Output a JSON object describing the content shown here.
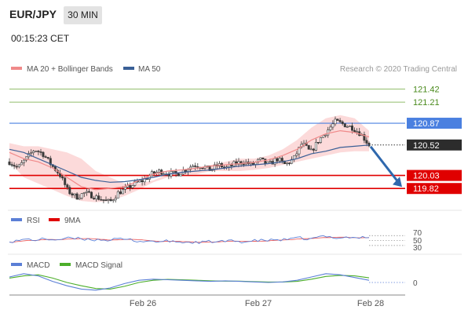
{
  "header": {
    "symbol": "EUR/JPY",
    "timeframe": "30 MIN",
    "time": "00:15:23 CET"
  },
  "legend": {
    "ma20_bb": "MA 20 + Bollinger Bands",
    "ma50": "MA 50",
    "credit": "Research © 2020 Trading Central",
    "rsi": "RSI",
    "rsi_ma": "9MA",
    "macd": "MACD",
    "macd_signal": "MACD Signal"
  },
  "colors": {
    "candle": "#3a3a3a",
    "ma20": "#f08a8a",
    "bands": "#fbd3d3",
    "ma50": "#3a5f96",
    "resistance": "#6fa83c",
    "pivot": "#4a80e0",
    "support": "#e00000",
    "arrow": "#2f68ad",
    "rsi": "#5b7fd6",
    "rsi_ma": "#e00000",
    "macd": "#5b7fd6",
    "macd_signal": "#4cae2a"
  },
  "chart_data": {
    "type": "candlestick",
    "symbol": "EUR/JPY",
    "timeframe": "30 MIN",
    "x_labels": [
      "Feb 26",
      "Feb 27",
      "Feb 28"
    ],
    "ylim": [
      119.52,
      121.59
    ],
    "levels": [
      {
        "label": "121.42",
        "value": 121.42,
        "kind": "resistance"
      },
      {
        "label": "121.21",
        "value": 121.21,
        "kind": "resistance"
      },
      {
        "label": "120.87",
        "value": 120.87,
        "kind": "pivot"
      },
      {
        "label": "120.52",
        "value": 120.52,
        "kind": "last"
      },
      {
        "label": "120.03",
        "value": 120.03,
        "kind": "support"
      },
      {
        "label": "119.82",
        "value": 119.82,
        "kind": "support"
      }
    ],
    "close_path": [
      120.25,
      120.15,
      120.3,
      120.45,
      120.38,
      120.2,
      120.05,
      119.78,
      119.68,
      119.75,
      119.7,
      119.65,
      119.6,
      119.75,
      119.82,
      119.9,
      119.95,
      120.05,
      120.1,
      120.06,
      120.05,
      120.12,
      120.2,
      120.18,
      120.12,
      120.2,
      120.15,
      120.22,
      120.25,
      120.2,
      120.28,
      120.2,
      120.3,
      120.2,
      120.3,
      120.55,
      120.4,
      120.6,
      120.75,
      120.9,
      120.85,
      120.8,
      120.7,
      120.52
    ],
    "bb_upper": [
      120.55,
      120.5,
      120.5,
      120.45,
      120.4,
      120.3,
      120.1,
      120.0,
      119.9,
      119.9,
      119.95,
      120.05,
      120.1,
      120.15,
      120.2,
      120.25,
      120.3,
      120.3,
      120.35,
      120.45,
      120.6,
      120.8,
      120.95,
      121.0,
      120.95,
      120.75
    ],
    "bb_lower": [
      120.25,
      120.0,
      119.9,
      119.8,
      119.7,
      119.62,
      119.6,
      119.62,
      119.7,
      119.8,
      119.92,
      120.0,
      120.05,
      120.05,
      120.1,
      120.1,
      120.1,
      120.12,
      120.15,
      120.2,
      120.25,
      120.3,
      120.35,
      120.4,
      120.42,
      120.42
    ],
    "ma20": [
      120.4,
      120.3,
      120.25,
      120.15,
      120.0,
      119.85,
      119.8,
      119.82,
      119.85,
      119.95,
      120.05,
      120.1,
      120.12,
      120.15,
      120.18,
      120.2,
      120.22,
      120.24,
      120.28,
      120.35,
      120.45,
      120.6,
      120.7,
      120.75,
      120.72,
      120.65
    ],
    "ma50": [
      120.45,
      120.4,
      120.3,
      120.2,
      120.1,
      120.0,
      119.95,
      119.92,
      119.93,
      119.96,
      120.0,
      120.05,
      120.08,
      120.1,
      120.12,
      120.15,
      120.18,
      120.2,
      120.22,
      120.25,
      120.3,
      120.38,
      120.42,
      120.48,
      120.5,
      120.52
    ],
    "forecast": {
      "from": 120.52,
      "to": 119.82
    },
    "rsi": {
      "levels": [
        70,
        50,
        30
      ]
    },
    "macd": {
      "levels": [
        0
      ]
    }
  }
}
